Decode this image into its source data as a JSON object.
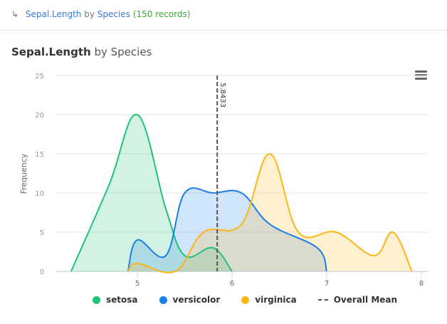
{
  "breadcrumb": {
    "arrow_icon": "↳",
    "field": "Sepal.Length",
    "by": "by",
    "group": "Species",
    "count": "(150 records)"
  },
  "header": {
    "title_field": "Sepal.Length",
    "title_rest": "by Species"
  },
  "menu": {
    "icon": "hamburger-menu-icon"
  },
  "colors": {
    "setosa": "#1fc27a",
    "versicolor": "#1a7fe8",
    "virginica": "#fdb515",
    "mean": "#555555",
    "grid": "#e6e6e6",
    "axis_text": "#999999"
  },
  "legend": [
    {
      "label": "setosa",
      "color": "#1fc27a",
      "type": "dot"
    },
    {
      "label": "versicolor",
      "color": "#1a7fe8",
      "type": "dot"
    },
    {
      "label": "virginica",
      "color": "#fdb515",
      "type": "dot"
    },
    {
      "label": "Overall Mean",
      "color": "#555555",
      "type": "dash"
    }
  ],
  "chart_data": {
    "type": "area",
    "title": "Sepal.Length by Species",
    "xlabel": "",
    "ylabel": "Frequency",
    "xlim": [
      4.3,
      7.9
    ],
    "ylim": [
      0,
      25
    ],
    "xticks": [
      5,
      6,
      7,
      8
    ],
    "yticks": [
      0,
      5,
      10,
      15,
      20,
      25
    ],
    "grid": true,
    "legend_position": "bottom",
    "annotations": [
      {
        "type": "vline",
        "x": 5.8433,
        "label": "5.8433",
        "name": "Overall Mean"
      }
    ],
    "series": [
      {
        "name": "setosa",
        "x": [
          4.3,
          4.7,
          5.0,
          5.3,
          5.5,
          5.8,
          6.0
        ],
        "y": [
          0,
          11,
          20,
          8,
          2,
          3,
          0
        ]
      },
      {
        "name": "versicolor",
        "x": [
          4.9,
          5.0,
          5.3,
          5.5,
          5.8,
          6.1,
          6.4,
          6.9,
          7.0
        ],
        "y": [
          0,
          4,
          2,
          10,
          10,
          10,
          6,
          3,
          0
        ]
      },
      {
        "name": "virginica",
        "x": [
          4.9,
          5.0,
          5.4,
          5.7,
          6.1,
          6.4,
          6.7,
          7.1,
          7.5,
          7.7,
          7.9
        ],
        "y": [
          0,
          1,
          0,
          5,
          6,
          15,
          5,
          5,
          2,
          5,
          0
        ]
      }
    ]
  }
}
